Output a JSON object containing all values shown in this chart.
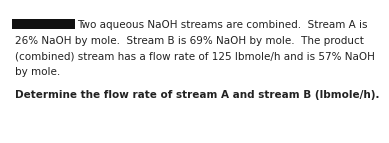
{
  "line1": "Two aqueous NaOH streams are combined.  Stream A is",
  "line2": "26% NaOH by mole.  Stream B is 69% NaOH by mole.  The product",
  "line3": "(combined) stream has a flow rate of 125 lbmole/h and is 57% NaOH",
  "line4": "by mole.",
  "bold_text": "Determine the flow rate of stream A and stream B (lbmole/h).",
  "redact_color": "#111111",
  "body_fontsize": 7.5,
  "bold_fontsize": 7.5,
  "bg_color": "#ffffff",
  "text_color": "#222222"
}
